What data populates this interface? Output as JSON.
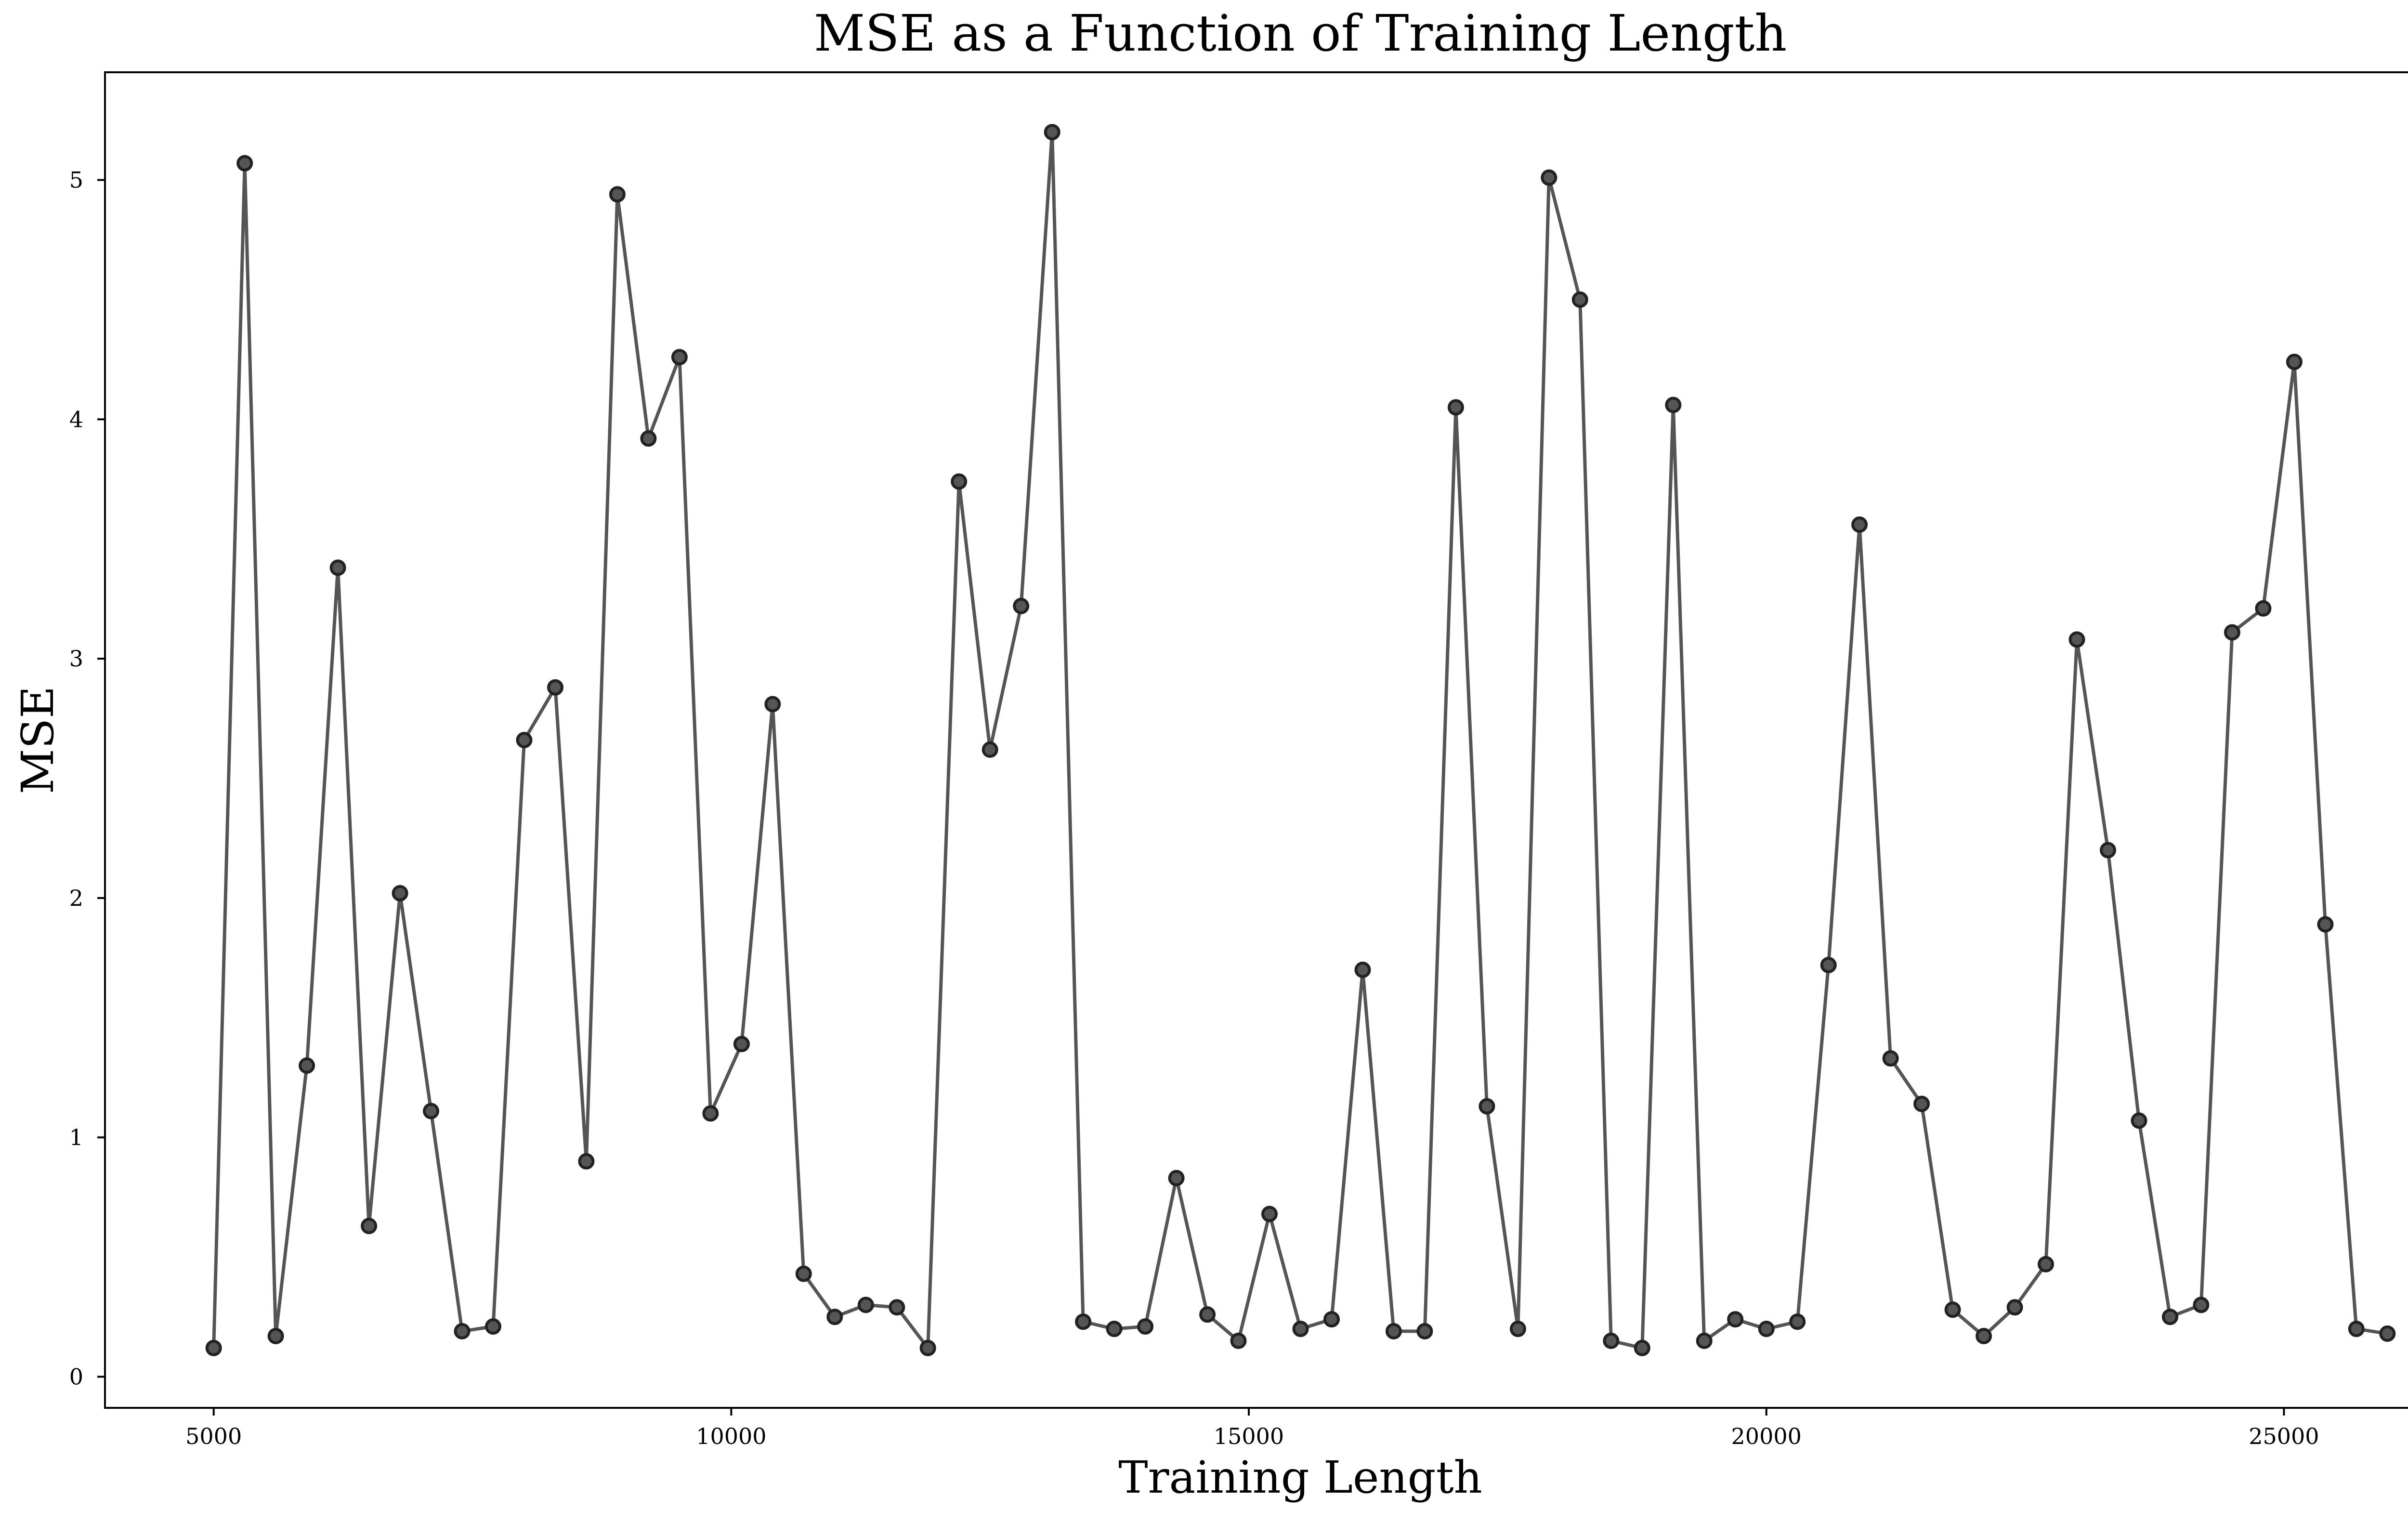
{
  "chart_data": {
    "type": "line",
    "title": "MSE as a Function of Training Length",
    "xlabel": "Training Length",
    "ylabel": "MSE",
    "xlim": [
      3950,
      27050
    ],
    "ylim": [
      -0.13,
      5.45
    ],
    "xticks": [
      5000,
      10000,
      15000,
      20000,
      25000
    ],
    "yticks": [
      0,
      1,
      2,
      3,
      4,
      5
    ],
    "grid": false,
    "legend": "none",
    "line_color": "#555555",
    "marker": "circle",
    "series": [
      {
        "x": [
          5000,
          5300,
          5600,
          5900,
          6200,
          6500,
          6800,
          7100,
          7400,
          7700,
          8000,
          8300,
          8600,
          8900,
          9200,
          9500,
          9800,
          10100,
          10400,
          10700,
          11000,
          11300,
          11600,
          11900,
          12200,
          12500,
          12800,
          13100,
          13400,
          13700,
          14000,
          14300,
          14600,
          14900,
          15200,
          15500,
          15800,
          16100,
          16400,
          16700,
          17000,
          17300,
          17600,
          17900,
          18200,
          18500,
          18800,
          19100,
          19400,
          19700,
          20000,
          20300,
          20600,
          20900,
          21200,
          21500,
          21800,
          22100,
          22400,
          22700,
          23000,
          23300,
          23600,
          23900,
          24200,
          24500,
          24800,
          25100,
          25400,
          25700,
          26000
        ],
        "y": [
          0.12,
          5.07,
          0.17,
          1.3,
          3.38,
          0.63,
          2.02,
          1.11,
          0.19,
          0.21,
          2.66,
          2.88,
          0.9,
          4.94,
          3.92,
          4.26,
          1.1,
          1.39,
          2.81,
          0.43,
          0.25,
          0.3,
          0.29,
          0.12,
          3.74,
          2.62,
          3.22,
          5.2,
          0.23,
          0.2,
          0.21,
          0.83,
          0.26,
          0.15,
          0.68,
          0.2,
          0.24,
          1.7,
          0.19,
          0.19,
          4.05,
          1.13,
          0.2,
          5.01,
          4.5,
          0.15,
          0.12,
          4.06,
          0.15,
          0.24,
          0.2,
          0.23,
          1.72,
          3.56,
          1.33,
          1.14,
          0.28,
          0.17,
          0.29,
          0.47,
          3.08,
          2.2,
          1.07,
          0.25,
          0.3,
          3.11,
          3.21,
          4.24,
          1.89,
          0.2,
          0.18
        ]
      }
    ]
  }
}
